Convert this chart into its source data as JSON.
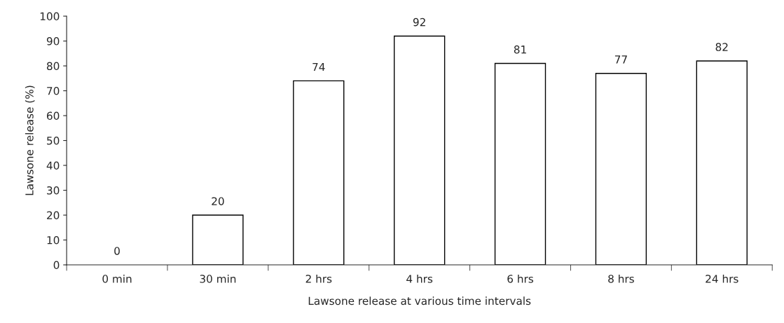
{
  "chart_data": {
    "type": "bar",
    "xlabel": "Lawsone release at various time intervals",
    "ylabel": "Lawsone release (%)",
    "categories": [
      "0 min",
      "30 min",
      "2 hrs",
      "4 hrs",
      "6 hrs",
      "8 hrs",
      "24 hrs"
    ],
    "values": [
      0,
      20,
      74,
      92,
      81,
      77,
      82
    ],
    "color": "#ffffff",
    "ylim": [
      0,
      100
    ],
    "yticks": [
      0,
      10,
      20,
      30,
      40,
      50,
      60,
      70,
      80,
      90,
      100
    ],
    "grid": false,
    "data_labels": true
  }
}
